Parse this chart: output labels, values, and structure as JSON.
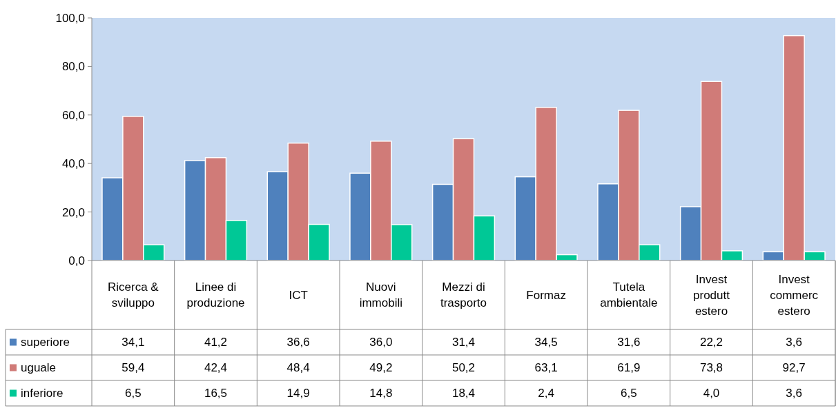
{
  "chart_data": {
    "type": "bar",
    "categories": [
      "Ricerca & sviluppo",
      "Linee di produzione",
      "ICT",
      "Nuovi immobili",
      "Mezzi di trasporto",
      "Formaz",
      "Tutela ambientale",
      "Invest produtt estero",
      "Invest commerc estero"
    ],
    "series": [
      {
        "name": "superiore",
        "color": "#4f81bd",
        "values": [
          34.1,
          41.2,
          36.6,
          36.0,
          31.4,
          34.5,
          31.6,
          22.2,
          3.6
        ],
        "value_labels": [
          "34,1",
          "41,2",
          "36,6",
          "36,0",
          "31,4",
          "34,5",
          "31,6",
          "22,2",
          "3,6"
        ]
      },
      {
        "name": "uguale",
        "color": "#d07b78",
        "values": [
          59.4,
          42.4,
          48.4,
          49.2,
          50.2,
          63.1,
          61.9,
          73.8,
          92.7
        ],
        "value_labels": [
          "59,4",
          "42,4",
          "48,4",
          "49,2",
          "50,2",
          "63,1",
          "61,9",
          "73,8",
          "92,7"
        ]
      },
      {
        "name": "inferiore",
        "color": "#00c896",
        "values": [
          6.5,
          16.5,
          14.9,
          14.8,
          18.4,
          2.4,
          6.5,
          4.0,
          3.6
        ],
        "value_labels": [
          "6,5",
          "16,5",
          "14,9",
          "14,8",
          "18,4",
          "2,4",
          "6,5",
          "4,0",
          "3,6"
        ]
      }
    ],
    "ylim": [
      0,
      100
    ],
    "yticks": [
      {
        "value": 0,
        "label": "0,0"
      },
      {
        "value": 20,
        "label": "20,0"
      },
      {
        "value": 40,
        "label": "40,0"
      },
      {
        "value": 60,
        "label": "60,0"
      },
      {
        "value": 80,
        "label": "80,0"
      },
      {
        "value": 100,
        "label": "100,0"
      }
    ],
    "legend": "bottom left",
    "grid": false
  }
}
